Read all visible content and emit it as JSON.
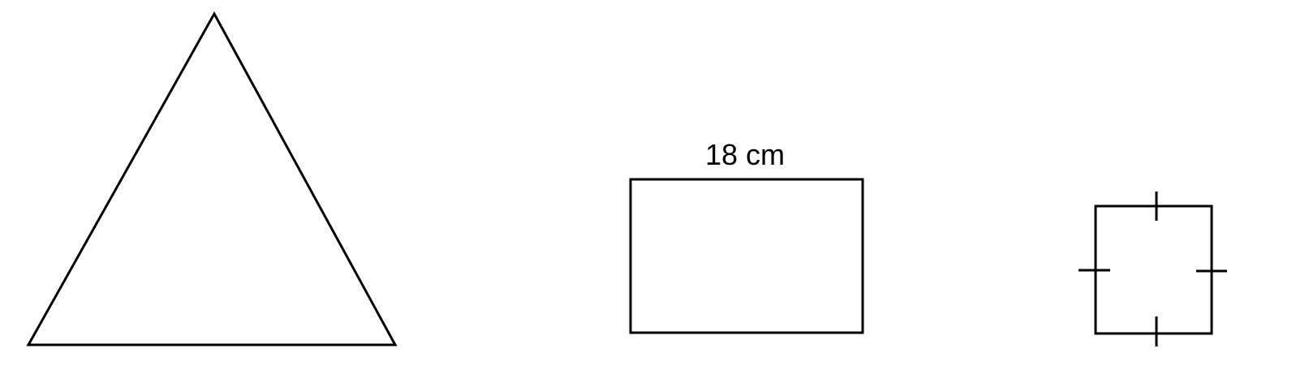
{
  "diagram": {
    "shapes": [
      {
        "kind": "triangle"
      },
      {
        "kind": "rectangle",
        "top_label": "18 cm"
      },
      {
        "kind": "square",
        "equal_side_ticks": 4
      }
    ],
    "colors": {
      "stroke": "#000000",
      "background": "#ffffff"
    }
  }
}
